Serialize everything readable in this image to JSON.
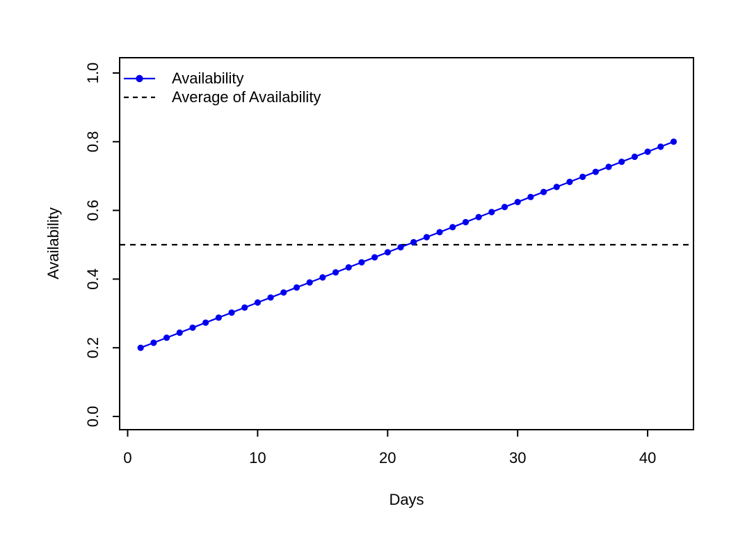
{
  "figure": {
    "background_color": "#ffffff",
    "title": ""
  },
  "chart_data": {
    "type": "line",
    "title": "",
    "xlabel": "Days",
    "ylabel": "Availability",
    "xlim": [
      -0.6,
      43.5
    ],
    "ylim": [
      -0.04,
      1.04
    ],
    "x_ticks": [
      0,
      10,
      20,
      30,
      40
    ],
    "x_tick_labels": [
      "0",
      "10",
      "20",
      "30",
      "40"
    ],
    "y_ticks": [
      0.0,
      0.2,
      0.4,
      0.6,
      0.8,
      1.0
    ],
    "y_tick_labels": [
      "0.0",
      "0.2",
      "0.4",
      "0.6",
      "0.8",
      "1.0"
    ],
    "grid": false,
    "frame_box": true,
    "axis_color": "#000000",
    "legend_position": "top-left",
    "legend_box": false,
    "series": [
      {
        "name": "Availability",
        "style": "line-with-markers",
        "marker": "filled-circle",
        "color": "#0000ee",
        "x": [
          1,
          2,
          3,
          4,
          5,
          6,
          7,
          8,
          9,
          10,
          11,
          12,
          13,
          14,
          15,
          16,
          17,
          18,
          19,
          20,
          21,
          22,
          23,
          24,
          25,
          26,
          27,
          28,
          29,
          30,
          31,
          32,
          33,
          34,
          35,
          36,
          37,
          38,
          39,
          40,
          41,
          42
        ],
        "y": [
          0.2,
          0.2146,
          0.2293,
          0.2439,
          0.2585,
          0.2732,
          0.2878,
          0.3024,
          0.3171,
          0.3317,
          0.3463,
          0.361,
          0.3756,
          0.3902,
          0.4049,
          0.4195,
          0.4341,
          0.4488,
          0.4634,
          0.478,
          0.4927,
          0.5073,
          0.522,
          0.5366,
          0.5512,
          0.5659,
          0.5805,
          0.5951,
          0.6098,
          0.6244,
          0.639,
          0.6537,
          0.6683,
          0.6829,
          0.6976,
          0.7122,
          0.7268,
          0.7415,
          0.7561,
          0.7707,
          0.7854,
          0.8
        ]
      },
      {
        "name": "Average of Availability",
        "style": "horizontal-dashed-line",
        "color": "#000000",
        "value": 0.5
      }
    ]
  }
}
